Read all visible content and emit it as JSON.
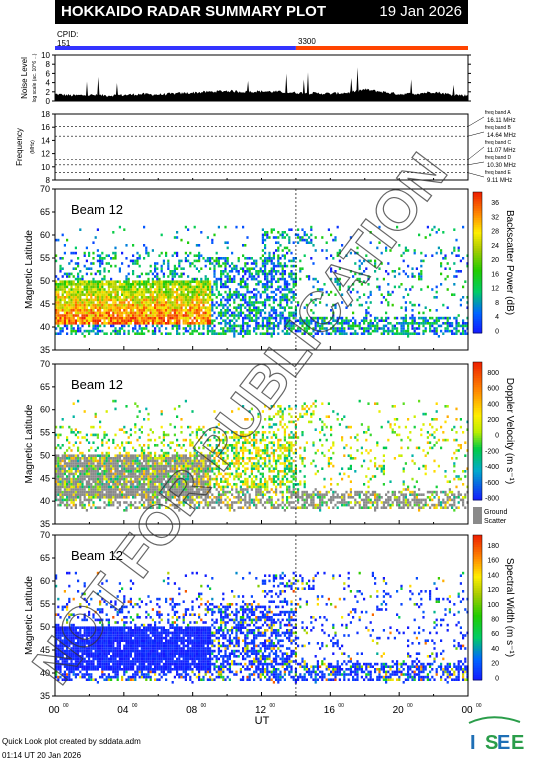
{
  "header": {
    "title": "HOKKAIDO RADAR SUMMARY PLOT",
    "date": "19 Jan 2026"
  },
  "cpid": {
    "label": "CPID:",
    "first": "151",
    "second": "3300",
    "first_color": "#3333ff",
    "second_color": "#ff4400"
  },
  "footer": {
    "line1": "Quick Look plot created by sddata.adm",
    "line2": "01:14 UT 20 Jan 2026"
  },
  "logo": {
    "text": "ISEE"
  },
  "watermark": {
    "text": "NOT FOR PUBLICATION"
  },
  "chart_data": [
    {
      "type": "area",
      "id": "noise",
      "ylabel": "Noise Level",
      "ylabel_sub": "log scale (ac. 10^6 ...)",
      "yticks": [
        0,
        2,
        4,
        6,
        8,
        10
      ],
      "ylim": [
        0,
        10
      ],
      "x": [
        0,
        1,
        2,
        3,
        4,
        5,
        6,
        7,
        8,
        9,
        10,
        11,
        12,
        13,
        14,
        15,
        16,
        17,
        18,
        19,
        20,
        21,
        22,
        23,
        24
      ],
      "values": [
        1.5,
        1.2,
        1.3,
        1.2,
        1.3,
        1.5,
        1.4,
        1.6,
        1.8,
        2.0,
        2.2,
        2.0,
        2.1,
        2.0,
        1.8,
        1.7,
        1.6,
        1.8,
        2.5,
        2.0,
        1.5,
        1.6,
        2.0,
        1.4,
        1.2
      ]
    },
    {
      "type": "line",
      "id": "frequency",
      "ylabel": "Frequency",
      "ylabel_sub": "(MHz)",
      "yticks": [
        8,
        10,
        12,
        14,
        16,
        18
      ],
      "ylim": [
        8,
        18
      ],
      "series": [
        {
          "name": "freq band A",
          "value": 16.11,
          "label": "freq band A\n16.11 MHz"
        },
        {
          "name": "freq band B",
          "value": 14.64,
          "label": "freq band B\n14.64 MHz"
        },
        {
          "name": "freq band C",
          "value": 11.07,
          "label": "freq band C\n11.07 MHz"
        },
        {
          "name": "freq band D",
          "value": 10.3,
          "label": "freq band D\n10.30 MHz"
        },
        {
          "name": "freq band E",
          "value": 9.11,
          "label": "freq band E\n9.11 MHz"
        }
      ]
    },
    {
      "type": "heatmap",
      "id": "power",
      "beam": "Beam 12",
      "ylabel": "Magnetic Latitude",
      "ylim": [
        35,
        70
      ],
      "yticks": [
        35,
        40,
        45,
        50,
        55,
        60,
        65,
        70
      ],
      "colorbar": {
        "label": "Backscatter Power (dB)",
        "ticks": [
          "36",
          "32",
          "28",
          "24",
          "20",
          "16",
          "12",
          "8",
          "4",
          "0"
        ],
        "range": [
          0,
          38
        ]
      }
    },
    {
      "type": "heatmap",
      "id": "velocity",
      "beam": "Beam 12",
      "ylabel": "Magnetic Latitude",
      "ylim": [
        35,
        70
      ],
      "yticks": [
        35,
        40,
        45,
        50,
        55,
        60,
        65,
        70
      ],
      "colorbar": {
        "label": "Doppler Velocity (m s⁻¹)",
        "ticks": [
          "800",
          "600",
          "400",
          "200",
          "0",
          "-200",
          "-400",
          "-600",
          "-800"
        ],
        "range": [
          -900,
          900
        ],
        "extra": [
          "Ground",
          "Scatter"
        ]
      }
    },
    {
      "type": "heatmap",
      "id": "width",
      "beam": "Beam 12",
      "ylabel": "Magnetic Latitude",
      "ylim": [
        35,
        70
      ],
      "yticks": [
        35,
        40,
        45,
        50,
        55,
        60,
        65,
        70
      ],
      "colorbar": {
        "label": "Spectral Width (m s⁻¹)",
        "ticks": [
          "180",
          "160",
          "140",
          "120",
          "100",
          "80",
          "60",
          "40",
          "20",
          "0"
        ],
        "range": [
          0,
          190
        ]
      }
    }
  ],
  "xaxis": {
    "label": "UT",
    "ticks": [
      "00",
      "04",
      "08",
      "12",
      "16",
      "20",
      "00"
    ],
    "tick_sup": "00",
    "marker_hour": 14.0,
    "xlim": [
      0,
      24
    ]
  }
}
